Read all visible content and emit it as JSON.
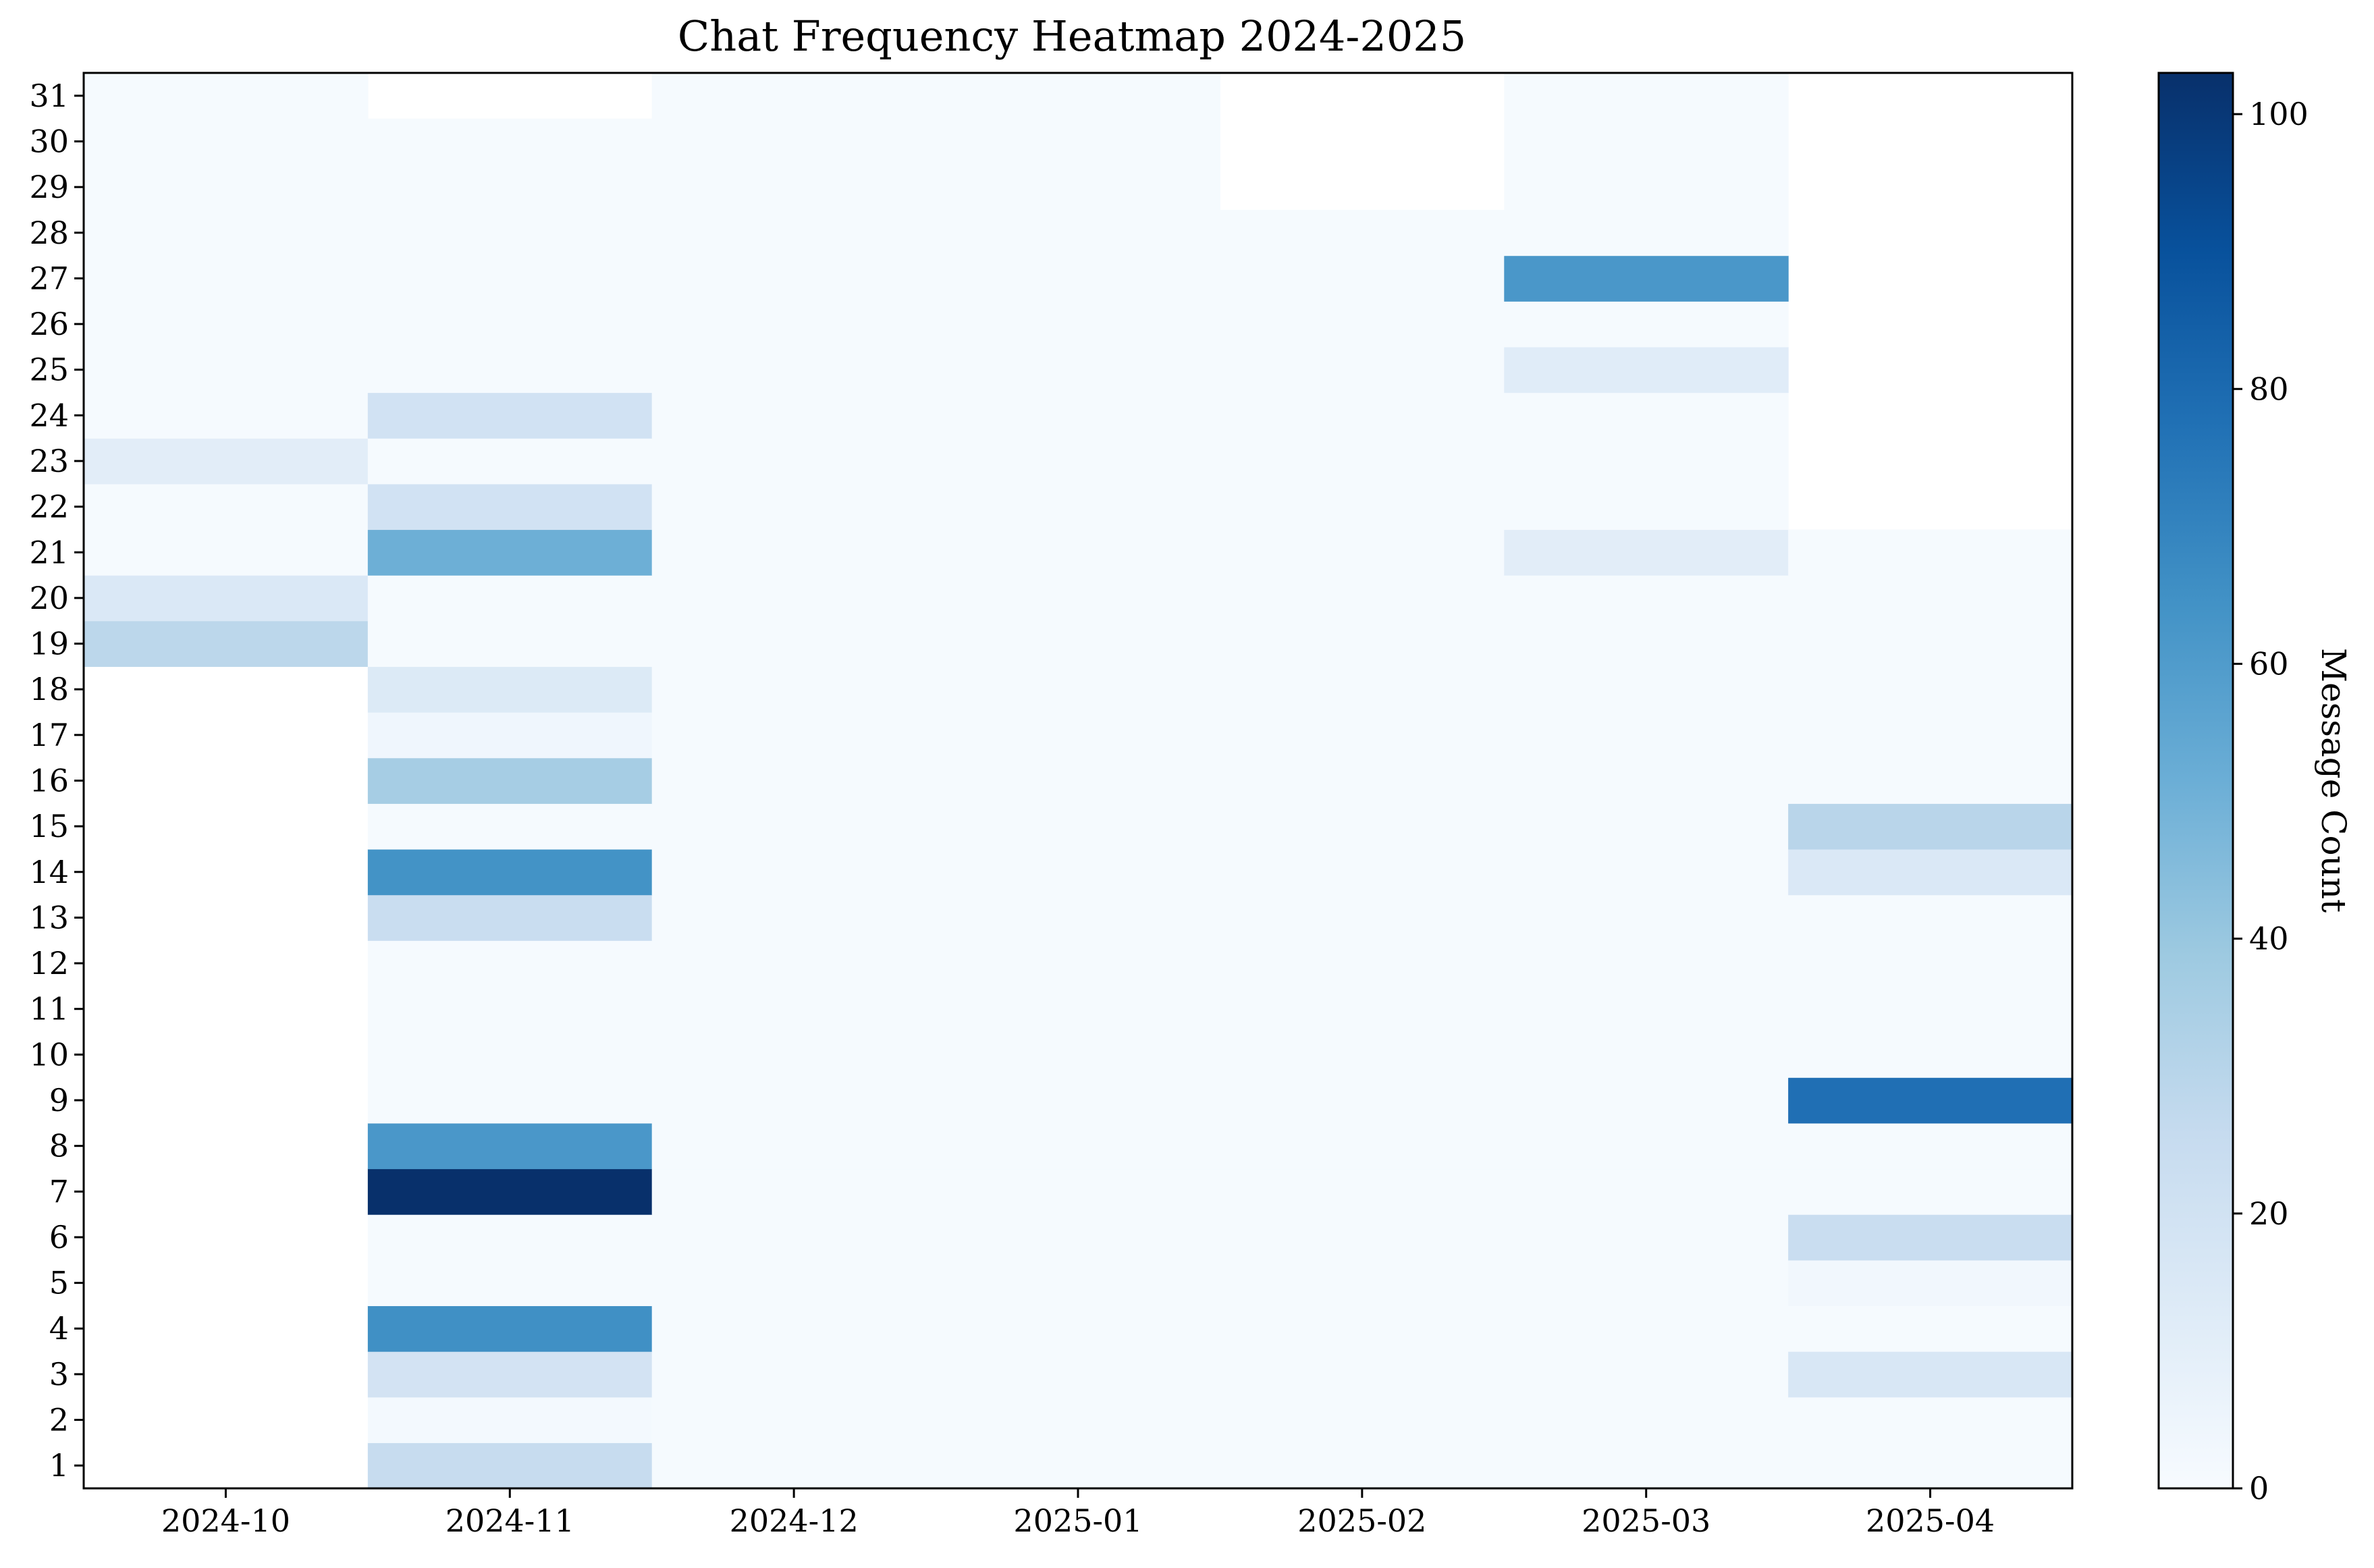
{
  "chart_data": {
    "type": "heatmap",
    "title": "Chat Frequency Heatmap 2024-2025",
    "xlabel": "",
    "ylabel": "",
    "x_categories": [
      "2024-10",
      "2024-11",
      "2024-12",
      "2025-01",
      "2025-02",
      "2025-03",
      "2025-04"
    ],
    "y_categories": [
      "1",
      "2",
      "3",
      "4",
      "5",
      "6",
      "7",
      "8",
      "9",
      "10",
      "11",
      "12",
      "13",
      "14",
      "15",
      "16",
      "17",
      "18",
      "19",
      "20",
      "21",
      "22",
      "23",
      "24",
      "25",
      "26",
      "27",
      "28",
      "29",
      "30",
      "31"
    ],
    "colorbar": {
      "label": "Message Count",
      "min": 0,
      "max": 103,
      "ticks": [
        0,
        20,
        40,
        60,
        80,
        100
      ],
      "colormap": "Blues",
      "colors": [
        "#f7fbff",
        "#deebf7",
        "#c6dbef",
        "#9ecae1",
        "#6baed6",
        "#4292c6",
        "#2171b5",
        "#08519c",
        "#08306b"
      ]
    },
    "grid": false,
    "values": [
      [
        null,
        25,
        1,
        1,
        1,
        1,
        1
      ],
      [
        null,
        2,
        1,
        1,
        1,
        1,
        1
      ],
      [
        null,
        19,
        1,
        1,
        1,
        1,
        16
      ],
      [
        null,
        65,
        1,
        1,
        1,
        1,
        1
      ],
      [
        null,
        1,
        1,
        1,
        1,
        1,
        3
      ],
      [
        null,
        1,
        1,
        1,
        1,
        1,
        24
      ],
      [
        null,
        103,
        1,
        1,
        1,
        1,
        1
      ],
      [
        null,
        62,
        1,
        1,
        1,
        1,
        1
      ],
      [
        null,
        1,
        1,
        1,
        1,
        1,
        78
      ],
      [
        null,
        1,
        1,
        1,
        1,
        1,
        1
      ],
      [
        null,
        1,
        1,
        1,
        1,
        1,
        1
      ],
      [
        null,
        1,
        1,
        1,
        1,
        1,
        1
      ],
      [
        null,
        24,
        1,
        1,
        1,
        1,
        1
      ],
      [
        null,
        64,
        1,
        1,
        1,
        1,
        15
      ],
      [
        null,
        1,
        1,
        1,
        1,
        1,
        30
      ],
      [
        null,
        36,
        1,
        1,
        1,
        1,
        1
      ],
      [
        null,
        4,
        1,
        1,
        1,
        1,
        1
      ],
      [
        null,
        14,
        1,
        1,
        1,
        1,
        1
      ],
      [
        29,
        1,
        1,
        1,
        1,
        1,
        1
      ],
      [
        15,
        1,
        1,
        1,
        1,
        1,
        1
      ],
      [
        1,
        51,
        1,
        1,
        1,
        11,
        1
      ],
      [
        1,
        20,
        1,
        1,
        1,
        1,
        null
      ],
      [
        11,
        1,
        1,
        1,
        1,
        1,
        null
      ],
      [
        1,
        20,
        1,
        1,
        1,
        1,
        null
      ],
      [
        1,
        1,
        1,
        1,
        1,
        12,
        null
      ],
      [
        1,
        1,
        1,
        1,
        1,
        1,
        null
      ],
      [
        1,
        1,
        1,
        1,
        1,
        62,
        null
      ],
      [
        1,
        1,
        1,
        1,
        1,
        1,
        null
      ],
      [
        1,
        1,
        1,
        1,
        null,
        1,
        null
      ],
      [
        1,
        1,
        1,
        1,
        null,
        1,
        null
      ],
      [
        1,
        null,
        1,
        1,
        null,
        1,
        null
      ]
    ]
  }
}
